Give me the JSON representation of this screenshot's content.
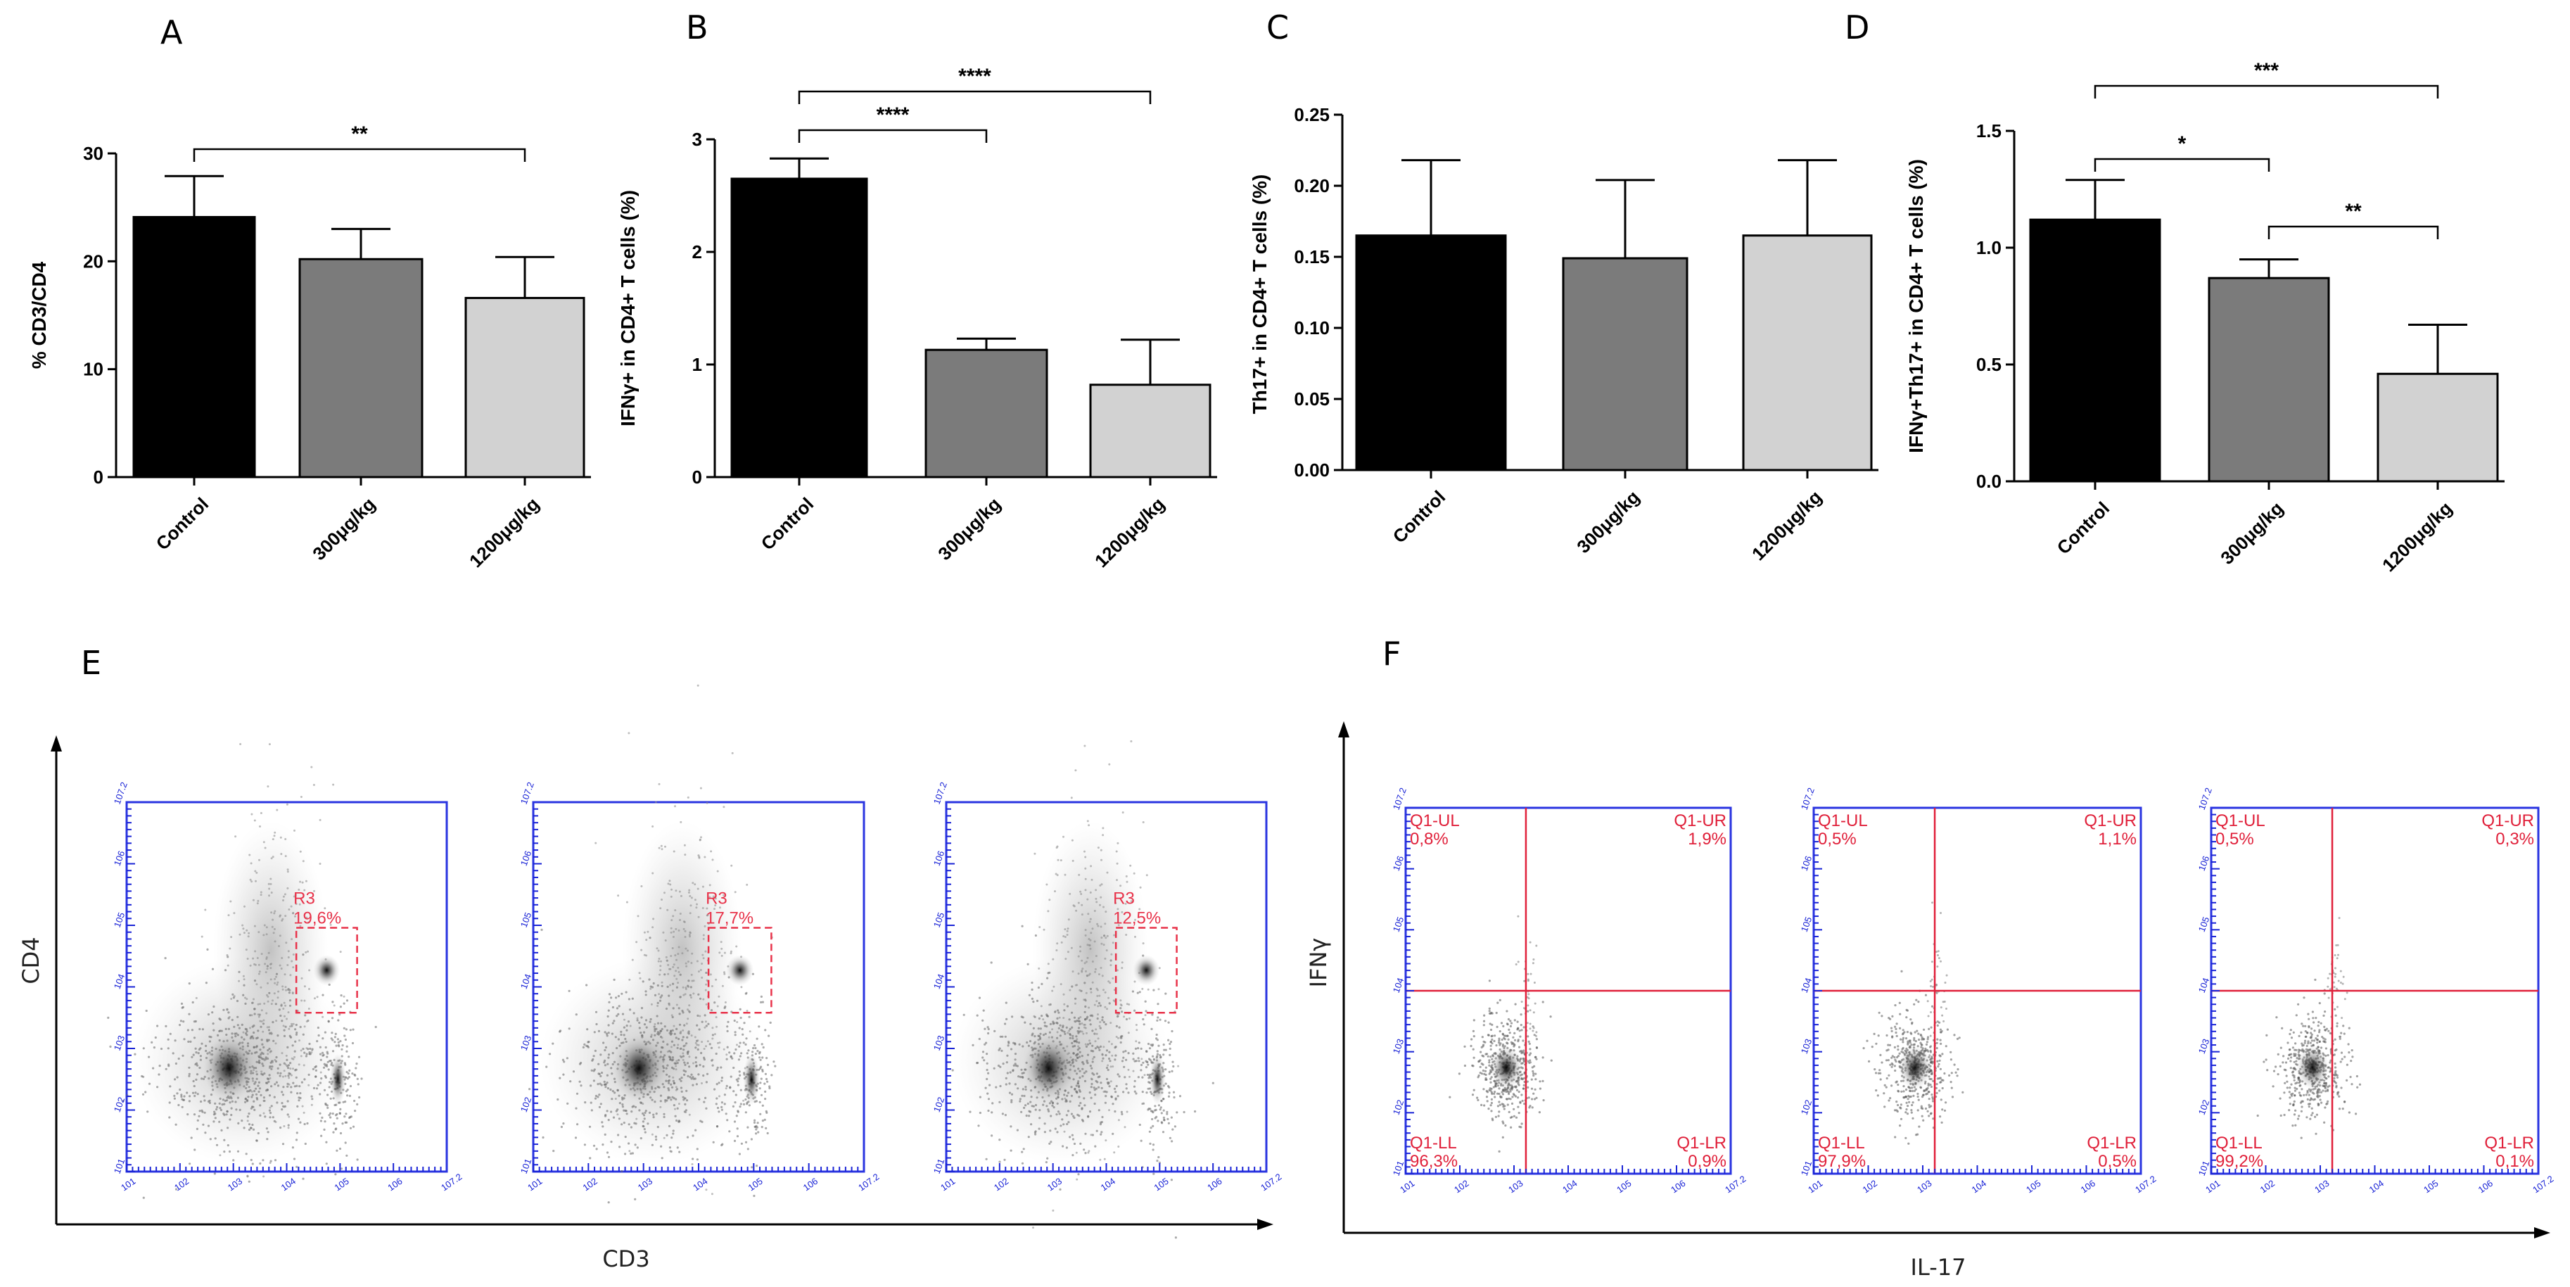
{
  "chart_data": [
    {
      "id": "A",
      "type": "bar",
      "letter": "A",
      "ylabel": "% CD3/CD4",
      "categories": [
        "Control",
        "300μg/kg",
        "1200μg/kg"
      ],
      "values": [
        24.1,
        20.2,
        16.6
      ],
      "errors": [
        3.8,
        2.8,
        3.8
      ],
      "colors": [
        "#000000",
        "#7b7b7b",
        "#d2d2d2"
      ],
      "ylim": [
        0,
        30
      ],
      "yticks": [
        "0",
        "10",
        "20",
        "30"
      ],
      "yticks_num": [
        0,
        10,
        20,
        30
      ],
      "significance": [
        {
          "from": 0,
          "to": 2,
          "label": "**"
        }
      ]
    },
    {
      "id": "B",
      "type": "bar",
      "letter": "B",
      "ylabel": "IFNγ+ in CD4+ T cells (%)",
      "categories": [
        "Control",
        "300μg/kg",
        "1200μg/kg"
      ],
      "values": [
        2.65,
        1.13,
        0.82
      ],
      "errors": [
        0.18,
        0.1,
        0.4
      ],
      "colors": [
        "#000000",
        "#7b7b7b",
        "#d2d2d2"
      ],
      "ylim": [
        0,
        3
      ],
      "yticks": [
        "0",
        "1",
        "2",
        "3"
      ],
      "yticks_num": [
        0,
        1,
        2,
        3
      ],
      "significance": [
        {
          "from": 0,
          "to": 1,
          "label": "****"
        },
        {
          "from": 0,
          "to": 2,
          "label": "****"
        }
      ]
    },
    {
      "id": "C",
      "type": "bar",
      "letter": "C",
      "ylabel": "Th17+ in CD4+ T cells (%)",
      "categories": [
        "Control",
        "300μg/kg",
        "1200μg/kg"
      ],
      "values": [
        0.165,
        0.149,
        0.165
      ],
      "errors": [
        0.053,
        0.055,
        0.053
      ],
      "colors": [
        "#000000",
        "#7b7b7b",
        "#d2d2d2"
      ],
      "ylim": [
        0,
        0.25
      ],
      "yticks": [
        "0.00",
        "0.05",
        "0.10",
        "0.15",
        "0.20",
        "0.25"
      ],
      "yticks_num": [
        0,
        0.05,
        0.1,
        0.15,
        0.2,
        0.25
      ],
      "significance": []
    },
    {
      "id": "D",
      "type": "bar",
      "letter": "D",
      "ylabel": "IFNγ+Th17+ in CD4+ T cells (%)",
      "categories": [
        "Control",
        "300μg/kg",
        "1200μg/kg"
      ],
      "values": [
        1.12,
        0.87,
        0.46
      ],
      "errors": [
        0.17,
        0.08,
        0.21
      ],
      "colors": [
        "#000000",
        "#7b7b7b",
        "#d2d2d2"
      ],
      "ylim": [
        0,
        1.5
      ],
      "yticks": [
        "0.0",
        "0.5",
        "1.0",
        "1.5"
      ],
      "yticks_num": [
        0,
        0.5,
        1,
        1.5
      ],
      "significance": [
        {
          "from": 0,
          "to": 1,
          "label": "*"
        },
        {
          "from": 1,
          "to": 2,
          "label": "**"
        },
        {
          "from": 0,
          "to": 2,
          "label": "***"
        }
      ]
    }
  ],
  "flow_cytometry": {
    "E": {
      "letter": "E",
      "xlabel": "CD3",
      "ylabel": "CD4",
      "decades": [
        "10^1",
        "10^2",
        "10^3",
        "10^4",
        "10^5",
        "10^6",
        "10^7.2"
      ],
      "plots": [
        {
          "gate": "R3",
          "percent": "19,6%"
        },
        {
          "gate": "R3",
          "percent": "17,7%"
        },
        {
          "gate": "R3",
          "percent": "12,5%"
        }
      ]
    },
    "F": {
      "letter": "F",
      "xlabel": "IL-17",
      "ylabel": "IFNγ",
      "decades": [
        "10^1",
        "10^2",
        "10^3",
        "10^4",
        "10^5",
        "10^6",
        "10^7.2"
      ],
      "quadrant_names": [
        "Q1-UL",
        "Q1-UR",
        "Q1-LL",
        "Q1-LR"
      ],
      "plots": [
        {
          "UL": "0,8%",
          "UR": "1,9%",
          "LL": "96,3%",
          "LR": "0,9%"
        },
        {
          "UL": "0,5%",
          "UR": "1,1%",
          "LL": "97,9%",
          "LR": "0,5%"
        },
        {
          "UL": "0,5%",
          "UR": "0,3%",
          "LL": "99,2%",
          "LR": "0,1%"
        }
      ]
    }
  }
}
